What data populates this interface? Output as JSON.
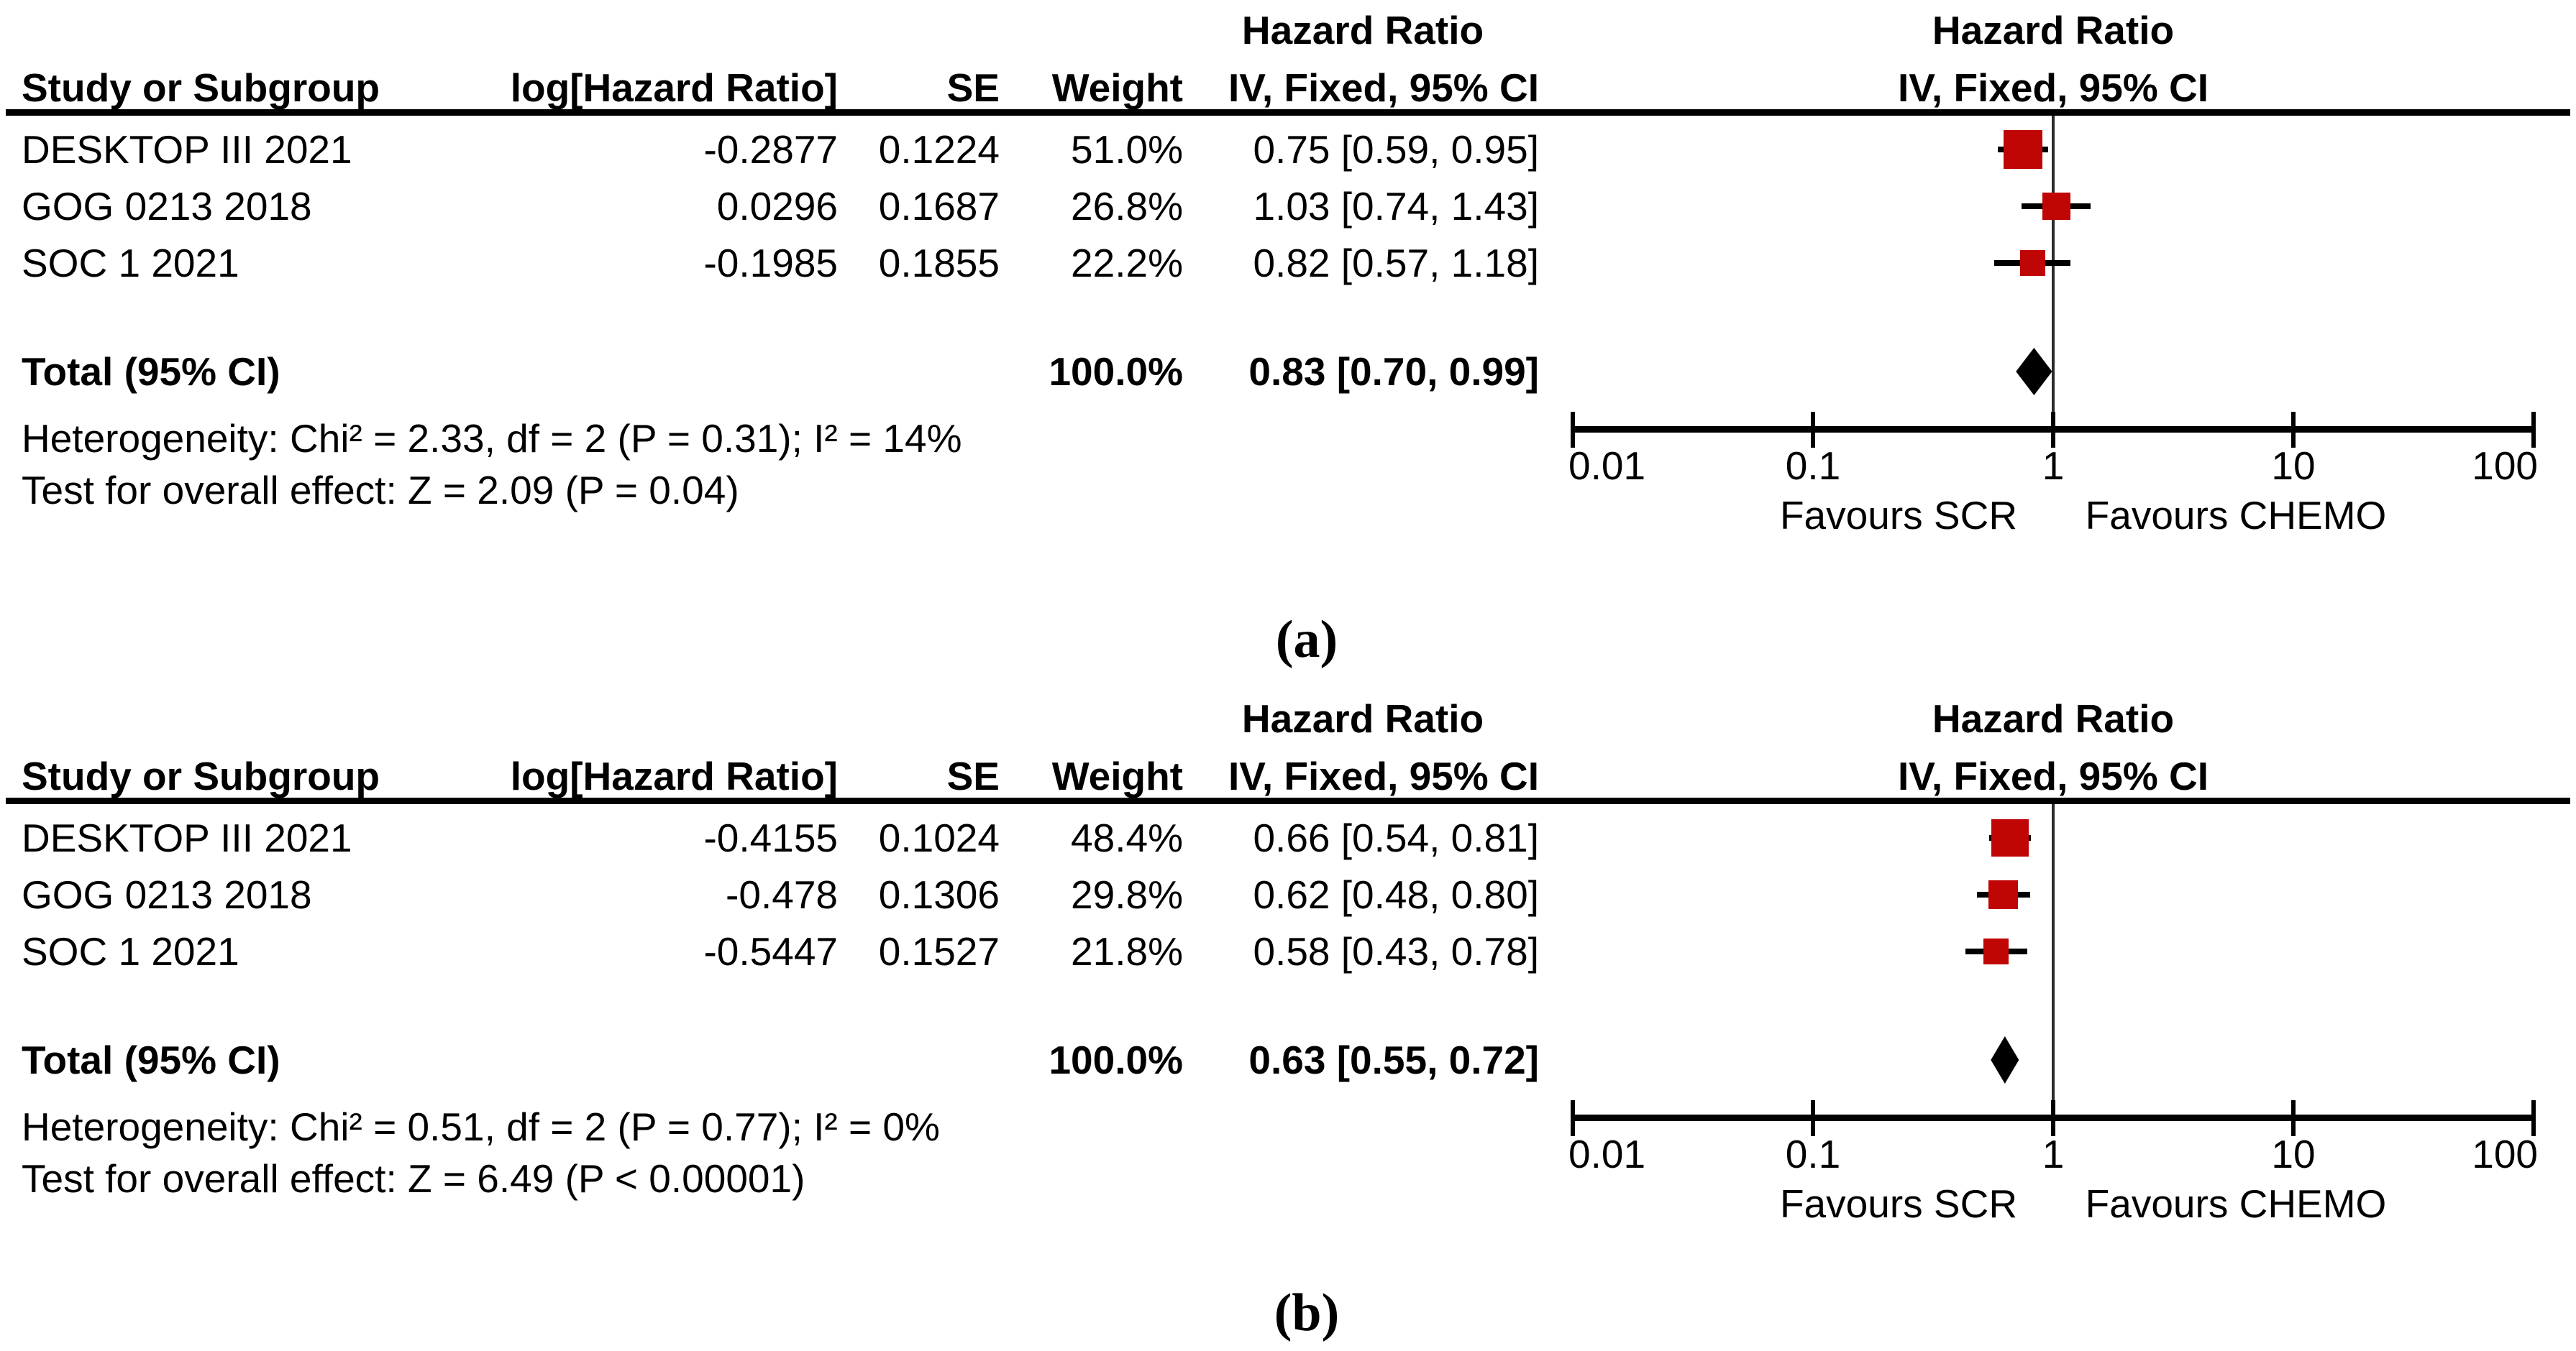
{
  "figure": {
    "label_a": "(a)",
    "label_b": "(b)"
  },
  "colors": {
    "marker_red": "#C00505",
    "diamond_black": "#000000",
    "axis_black": "#000000"
  },
  "panels": [
    {
      "id": "a",
      "header": {
        "hr_text_col": "Hazard Ratio",
        "hr_plot_col": "Hazard Ratio",
        "study": "Study or Subgroup",
        "log_hr": "log[Hazard Ratio]",
        "se": "SE",
        "weight": "Weight",
        "ci_text_col": "IV, Fixed, 95% CI",
        "ci_plot_col": "IV, Fixed, 95% CI"
      },
      "rows": [
        {
          "study": "DESKTOP III 2021",
          "log_hr": "-0.2877",
          "se": "0.1224",
          "weight": "51.0%",
          "ci": "0.75 [0.59, 0.95]",
          "hr": 0.75,
          "ci_low": 0.59,
          "ci_high": 0.95,
          "weight_pct": 51.0
        },
        {
          "study": "GOG 0213 2018",
          "log_hr": "0.0296",
          "se": "0.1687",
          "weight": "26.8%",
          "ci": "1.03 [0.74, 1.43]",
          "hr": 1.03,
          "ci_low": 0.74,
          "ci_high": 1.43,
          "weight_pct": 26.8
        },
        {
          "study": "SOC 1 2021",
          "log_hr": "-0.1985",
          "se": "0.1855",
          "weight": "22.2%",
          "ci": "0.82 [0.57, 1.18]",
          "hr": 0.82,
          "ci_low": 0.57,
          "ci_high": 1.18,
          "weight_pct": 22.2
        }
      ],
      "total": {
        "label": "Total (95% CI)",
        "weight": "100.0%",
        "ci": "0.83 [0.70, 0.99]",
        "hr": 0.83,
        "ci_low": 0.7,
        "ci_high": 0.99
      },
      "heterogeneity": "Heterogeneity: Chi² = 2.33, df = 2 (P = 0.31); I² = 14%",
      "overall_effect": "Test for overall effect: Z = 2.09 (P = 0.04)",
      "axis": {
        "tick_values": [
          0.01,
          0.1,
          1,
          10,
          100
        ],
        "tick_labels": [
          "0.01",
          "0.1",
          "1",
          "10",
          "100"
        ],
        "favours_left": "Favours SCR",
        "favours_right": "Favours CHEMO"
      }
    },
    {
      "id": "b",
      "header": {
        "hr_text_col": "Hazard Ratio",
        "hr_plot_col": "Hazard Ratio",
        "study": "Study or Subgroup",
        "log_hr": "log[Hazard Ratio]",
        "se": "SE",
        "weight": "Weight",
        "ci_text_col": "IV, Fixed, 95% CI",
        "ci_plot_col": "IV, Fixed, 95% CI"
      },
      "rows": [
        {
          "study": "DESKTOP III 2021",
          "log_hr": "-0.4155",
          "se": "0.1024",
          "weight": "48.4%",
          "ci": "0.66 [0.54, 0.81]",
          "hr": 0.66,
          "ci_low": 0.54,
          "ci_high": 0.81,
          "weight_pct": 48.4
        },
        {
          "study": "GOG 0213 2018",
          "log_hr": "-0.478",
          "se": "0.1306",
          "weight": "29.8%",
          "ci": "0.62 [0.48, 0.80]",
          "hr": 0.62,
          "ci_low": 0.48,
          "ci_high": 0.8,
          "weight_pct": 29.8
        },
        {
          "study": "SOC 1 2021",
          "log_hr": "-0.5447",
          "se": "0.1527",
          "weight": "21.8%",
          "ci": "0.58 [0.43, 0.78]",
          "hr": 0.58,
          "ci_low": 0.43,
          "ci_high": 0.78,
          "weight_pct": 21.8
        }
      ],
      "total": {
        "label": "Total (95% CI)",
        "weight": "100.0%",
        "ci": "0.63 [0.55, 0.72]",
        "hr": 0.63,
        "ci_low": 0.55,
        "ci_high": 0.72
      },
      "heterogeneity": "Heterogeneity: Chi² = 0.51, df = 2 (P = 0.77); I² = 0%",
      "overall_effect": "Test for overall effect: Z = 6.49 (P < 0.00001)",
      "axis": {
        "tick_values": [
          0.01,
          0.1,
          1,
          10,
          100
        ],
        "tick_labels": [
          "0.01",
          "0.1",
          "1",
          "10",
          "100"
        ],
        "favours_left": "Favours SCR",
        "favours_right": "Favours CHEMO"
      }
    }
  ],
  "chart_data": [
    {
      "type": "scatter",
      "subtype": "forest-plot",
      "panel": "a",
      "title": "Hazard Ratio IV, Fixed, 95% CI",
      "x_scale": "log",
      "xlim": [
        0.01,
        100
      ],
      "x_ticks": [
        0.01,
        0.1,
        1,
        10,
        100
      ],
      "xlabel_left": "Favours SCR",
      "xlabel_right": "Favours CHEMO",
      "reference_line": 1,
      "studies": [
        {
          "name": "DESKTOP III 2021",
          "log_hr": -0.2877,
          "se": 0.1224,
          "weight_pct": 51.0,
          "hr": 0.75,
          "ci": [
            0.59,
            0.95
          ]
        },
        {
          "name": "GOG 0213 2018",
          "log_hr": 0.0296,
          "se": 0.1687,
          "weight_pct": 26.8,
          "hr": 1.03,
          "ci": [
            0.74,
            1.43
          ]
        },
        {
          "name": "SOC 1 2021",
          "log_hr": -0.1985,
          "se": 0.1855,
          "weight_pct": 22.2,
          "hr": 0.82,
          "ci": [
            0.57,
            1.18
          ]
        }
      ],
      "total": {
        "weight_pct": 100.0,
        "hr": 0.83,
        "ci": [
          0.7,
          0.99
        ]
      },
      "heterogeneity": {
        "chi2": 2.33,
        "df": 2,
        "p": 0.31,
        "i2_pct": 14
      },
      "overall_effect": {
        "z": 2.09,
        "p": "0.04"
      }
    },
    {
      "type": "scatter",
      "subtype": "forest-plot",
      "panel": "b",
      "title": "Hazard Ratio IV, Fixed, 95% CI",
      "x_scale": "log",
      "xlim": [
        0.01,
        100
      ],
      "x_ticks": [
        0.01,
        0.1,
        1,
        10,
        100
      ],
      "xlabel_left": "Favours SCR",
      "xlabel_right": "Favours CHEMO",
      "reference_line": 1,
      "studies": [
        {
          "name": "DESKTOP III 2021",
          "log_hr": -0.4155,
          "se": 0.1024,
          "weight_pct": 48.4,
          "hr": 0.66,
          "ci": [
            0.54,
            0.81
          ]
        },
        {
          "name": "GOG 0213 2018",
          "log_hr": -0.478,
          "se": 0.1306,
          "weight_pct": 29.8,
          "hr": 0.62,
          "ci": [
            0.48,
            0.8
          ]
        },
        {
          "name": "SOC 1 2021",
          "log_hr": -0.5447,
          "se": 0.1527,
          "weight_pct": 21.8,
          "hr": 0.58,
          "ci": [
            0.43,
            0.78
          ]
        }
      ],
      "total": {
        "weight_pct": 100.0,
        "hr": 0.63,
        "ci": [
          0.55,
          0.72
        ]
      },
      "heterogeneity": {
        "chi2": 0.51,
        "df": 2,
        "p": 0.77,
        "i2_pct": 0
      },
      "overall_effect": {
        "z": 6.49,
        "p": "< 0.00001"
      }
    }
  ]
}
